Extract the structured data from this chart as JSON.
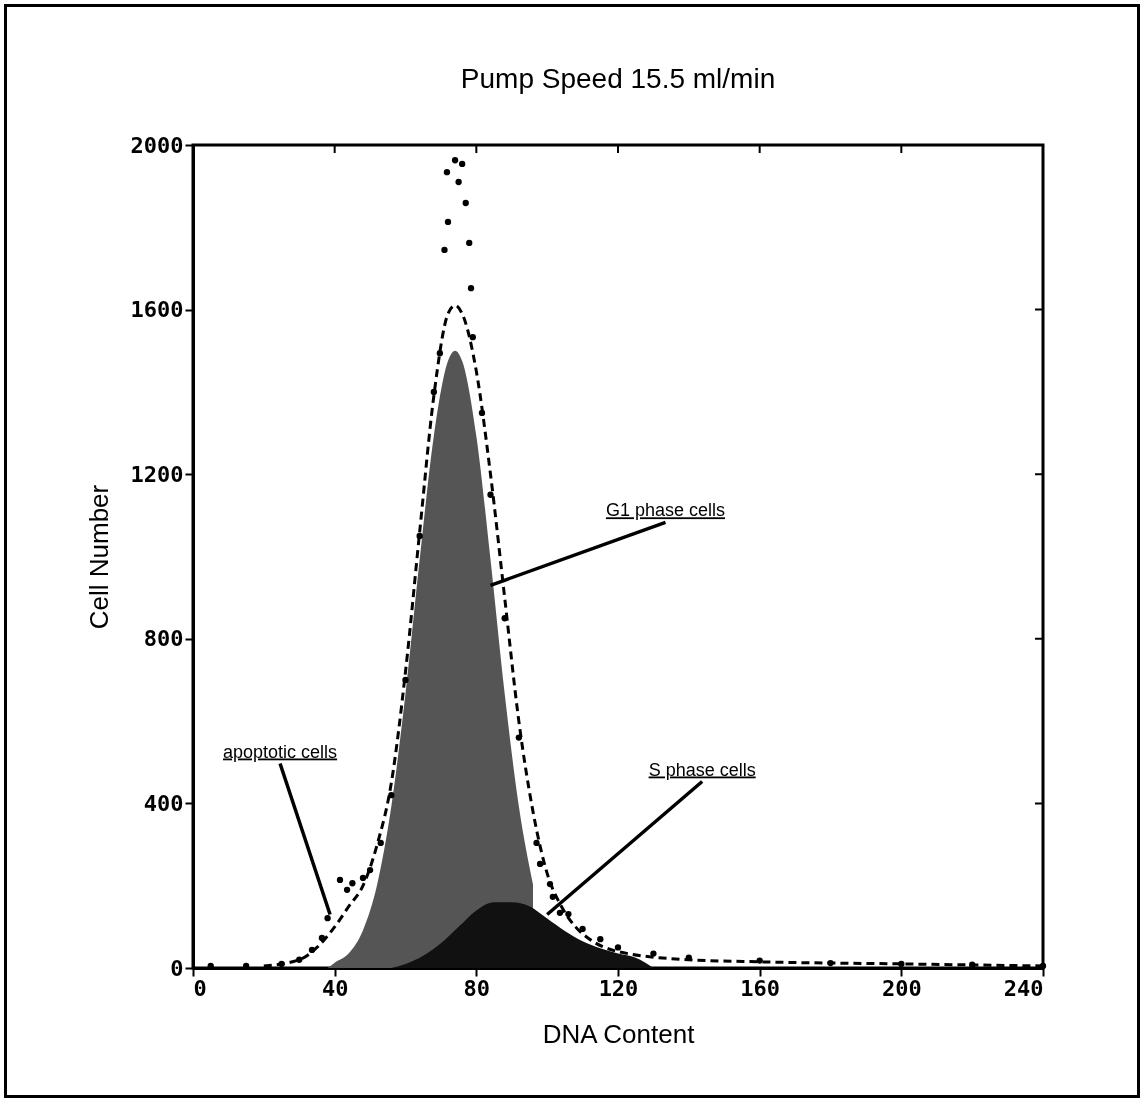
{
  "chart_data": {
    "type": "area",
    "title": "Pump Speed 15.5 ml/min",
    "xlabel": "DNA Content",
    "ylabel": "Cell Number",
    "xlim": [
      0,
      240
    ],
    "ylim": [
      0,
      2000
    ],
    "xticks": [
      0,
      40,
      80,
      120,
      160,
      200,
      240
    ],
    "yticks": [
      0,
      400,
      800,
      1200,
      1600,
      2000
    ],
    "grid": false,
    "series": [
      {
        "color": "#555555",
        "x": [
          38,
          40,
          44,
          48,
          52,
          56,
          60,
          64,
          68,
          72,
          74,
          76,
          80,
          84,
          88,
          92,
          96
        ],
        "values": [
          0,
          13,
          36,
          92,
          203,
          393,
          667,
          993,
          1293,
          1475,
          1500,
          1475,
          1293,
          993,
          667,
          393,
          203
        ]
      },
      {
        "color": "#111111",
        "x": [
          56,
          60,
          65,
          70,
          75,
          80,
          85,
          90,
          95,
          100,
          105,
          110,
          115,
          120,
          125,
          130
        ],
        "values": [
          0,
          10,
          30,
          60,
          100,
          140,
          160,
          160,
          150,
          120,
          90,
          65,
          48,
          35,
          25,
          0
        ]
      },
      {
        "type": "line",
        "line_style": "dashed",
        "color": "#000000",
        "x": [
          20,
          30,
          35,
          40,
          44,
          48,
          52,
          56,
          60,
          64,
          68,
          72,
          74,
          76,
          80,
          84,
          88,
          92,
          96,
          100,
          104,
          108,
          112,
          120,
          140,
          160,
          200,
          240
        ],
        "values": [
          5,
          20,
          50,
          100,
          150,
          200,
          300,
          450,
          720,
          1060,
          1390,
          1590,
          1610,
          1590,
          1450,
          1200,
          900,
          600,
          380,
          230,
          150,
          100,
          70,
          40,
          20,
          15,
          10,
          5
        ]
      },
      {
        "type": "scatter",
        "marker": "circle",
        "color": "#000000",
        "x": [
          5,
          15,
          25,
          30,
          33.6,
          36.4,
          38,
          41.5,
          43.5,
          45,
          48,
          50,
          53,
          56,
          60,
          64,
          68,
          69.7,
          71,
          71.7,
          72,
          74,
          75,
          76,
          77,
          78,
          78.5,
          79,
          81.6,
          84,
          88,
          92,
          97,
          98,
          100.8,
          101.6,
          103.6,
          106,
          110,
          115,
          120,
          130,
          140,
          160,
          180,
          200,
          220,
          240
        ],
        "values": [
          5,
          5,
          10,
          20,
          44,
          73,
          121,
          214,
          190,
          206,
          219,
          238,
          304,
          420,
          700,
          1050,
          1400,
          1494,
          1745,
          1934,
          1813,
          1963,
          1910,
          1954,
          1859,
          1762,
          1652,
          1533,
          1349,
          1150,
          850,
          560,
          304,
          253,
          204,
          173,
          134,
          131,
          95,
          70,
          50,
          35,
          25,
          18,
          12,
          10,
          8,
          5
        ]
      }
    ],
    "annotations": [
      {
        "text": "G1 phase cells",
        "x": 84,
        "y": 930
      },
      {
        "text": "apoptotic cells",
        "x": 38.7,
        "y": 130
      },
      {
        "text": "S phase cells",
        "x": 100,
        "y": 130
      }
    ]
  }
}
